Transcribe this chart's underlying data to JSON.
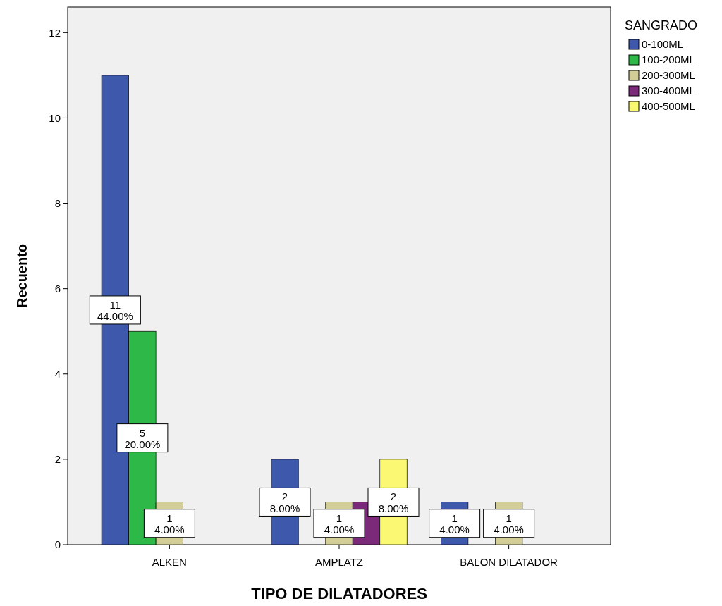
{
  "chart_data": {
    "type": "bar",
    "xlabel": "TIPO DE DILATADORES",
    "ylabel": "Recuento",
    "legend_title": "SANGRADO",
    "legend": "top right",
    "grid": false,
    "categories": [
      "ALKEN",
      "AMPLATZ",
      "BALON DILATADOR"
    ],
    "ylim": [
      0,
      12.6
    ],
    "yticks": [
      0,
      2,
      4,
      6,
      8,
      10,
      12
    ],
    "series": [
      {
        "name": "0-100ML",
        "color": "#3e58ac",
        "values": [
          11,
          2,
          1
        ],
        "value_labels": [
          "11\n44.00%",
          "2\n8.00%",
          "1\n4.00%"
        ]
      },
      {
        "name": "100-200ML",
        "color": "#2eb848",
        "values": [
          5,
          null,
          null
        ],
        "value_labels": [
          "5\n20.00%",
          null,
          null
        ]
      },
      {
        "name": "200-300ML",
        "color": "#d3ce97",
        "values": [
          1,
          1,
          1
        ],
        "value_labels": [
          "1\n4.00%",
          "1\n4.00%",
          "1\n4.00%"
        ]
      },
      {
        "name": "300-400ML",
        "color": "#7b2a7a",
        "values": [
          null,
          1,
          null
        ],
        "value_labels": [
          null,
          null,
          null
        ]
      },
      {
        "name": "400-500ML",
        "color": "#fbf873",
        "values": [
          null,
          2,
          null
        ],
        "value_labels": [
          null,
          "2\n8.00%",
          null
        ]
      }
    ]
  }
}
